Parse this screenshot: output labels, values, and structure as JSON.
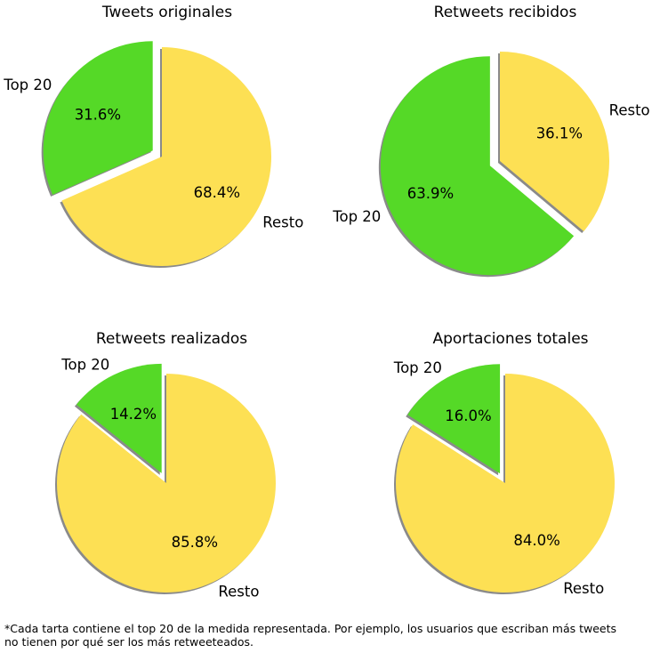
{
  "colors": {
    "top20": "#55d927",
    "resto": "#fde054",
    "shadow": "#8a8a8a"
  },
  "chart_data": [
    {
      "type": "pie",
      "title": "Tweets originales",
      "labels": [
        "Top 20",
        "Resto"
      ],
      "values": [
        31.6,
        68.4
      ],
      "explode": [
        0.1,
        0
      ],
      "startangle": 90,
      "shadow": true
    },
    {
      "type": "pie",
      "title": "Retweets recibidos",
      "labels": [
        "Top 20",
        "Resto"
      ],
      "values": [
        63.9,
        36.1
      ],
      "explode": [
        0.1,
        0
      ],
      "startangle": 90,
      "shadow": true
    },
    {
      "type": "pie",
      "title": "Retweets realizados",
      "labels": [
        "Top 20",
        "Resto"
      ],
      "values": [
        14.2,
        85.8
      ],
      "explode": [
        0.1,
        0
      ],
      "startangle": 90,
      "shadow": true
    },
    {
      "type": "pie",
      "title": "Aportaciones totales",
      "labels": [
        "Top 20",
        "Resto"
      ],
      "values": [
        16.0,
        84.0
      ],
      "explode": [
        0.1,
        0
      ],
      "startangle": 90,
      "shadow": true
    }
  ],
  "footnote": "*Cada tarta contiene el top 20 de la medida representada. Por ejemplo, los usuarios que escriban más tweets\nno tienen por qué ser los más retweeteados."
}
